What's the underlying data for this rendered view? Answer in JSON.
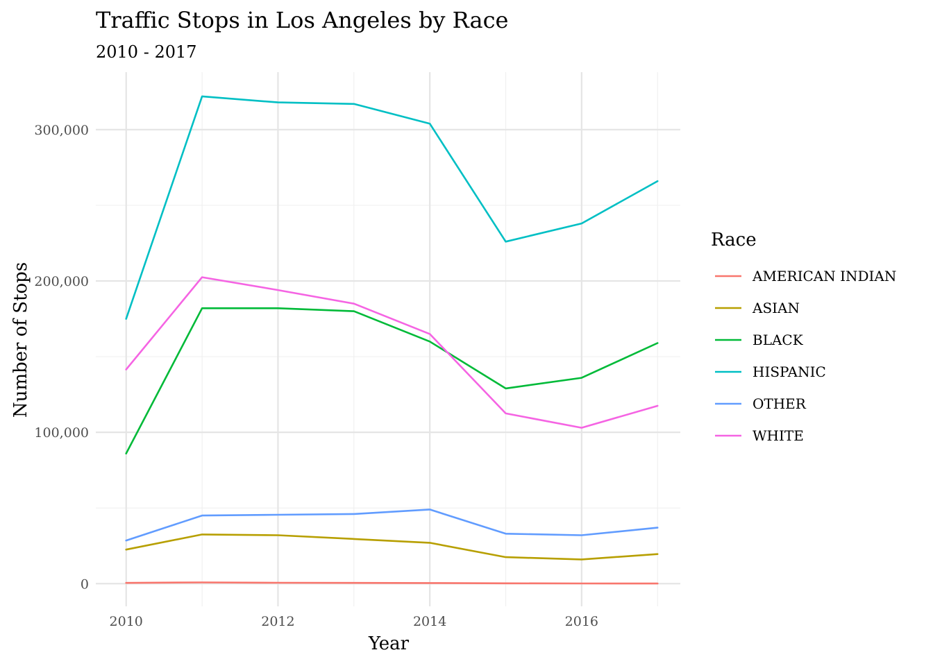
{
  "chart_data": {
    "type": "line",
    "title": "Traffic Stops in Los Angeles by Race",
    "subtitle": "2010 - 2017",
    "xlabel": "Year",
    "ylabel": "Number of Stops",
    "x": [
      2010,
      2011,
      2012,
      2013,
      2014,
      2015,
      2016,
      2017
    ],
    "x_ticks": [
      "2010",
      "2012",
      "2014",
      "2016"
    ],
    "x_tick_values": [
      2010,
      2012,
      2014,
      2016
    ],
    "y_ticks": [
      "0",
      "100,000",
      "200,000",
      "300,000"
    ],
    "y_tick_values": [
      0,
      100000,
      200000,
      300000
    ],
    "xlim": [
      2009.6,
      2017.3
    ],
    "ylim": [
      -15000,
      338000
    ],
    "grid": true,
    "legend": {
      "title": "Race",
      "position": "right"
    },
    "series": [
      {
        "name": "AMERICAN INDIAN",
        "color": "#F8766D",
        "values": [
          500,
          800,
          600,
          500,
          400,
          200,
          150,
          100
        ]
      },
      {
        "name": "ASIAN",
        "color": "#B79F00",
        "values": [
          22500,
          32500,
          32000,
          29500,
          27000,
          17500,
          16000,
          19500
        ]
      },
      {
        "name": "BLACK",
        "color": "#00BA38",
        "values": [
          86000,
          182000,
          182000,
          180000,
          160000,
          129000,
          136000,
          159000
        ]
      },
      {
        "name": "HISPANIC",
        "color": "#00BFC4",
        "values": [
          175000,
          322000,
          318000,
          317000,
          304000,
          226000,
          238000,
          266000
        ]
      },
      {
        "name": "OTHER",
        "color": "#619CFF",
        "values": [
          28500,
          45000,
          45500,
          46000,
          49000,
          33000,
          32000,
          37000
        ]
      },
      {
        "name": "WHITE",
        "color": "#F564E3",
        "values": [
          141500,
          202500,
          194000,
          185000,
          165000,
          112500,
          103000,
          117500
        ]
      }
    ]
  }
}
